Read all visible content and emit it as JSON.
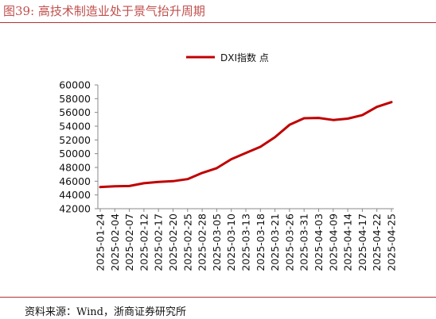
{
  "figure": {
    "title": "图39:   高技术制造业处于景气抬升周期",
    "source": "资料来源：Wind，浙商证券研究所"
  },
  "colors": {
    "series": "#c00000",
    "accent": "#c0504d",
    "axis": "#888888"
  },
  "chart_data": {
    "type": "line",
    "xlabel": "",
    "ylabel": "",
    "ylim": [
      42000,
      60000
    ],
    "yticks": [
      "42000",
      "44000",
      "46000",
      "48000",
      "50000",
      "52000",
      "54000",
      "56000",
      "58000",
      "60000"
    ],
    "grid": false,
    "legend": "top-center",
    "x": [
      "2025-01-24",
      "2025-02-04",
      "2025-02-07",
      "2025-02-12",
      "2025-02-17",
      "2025-02-20",
      "2025-02-25",
      "2025-02-28",
      "2025-03-05",
      "2025-03-10",
      "2025-03-13",
      "2025-03-18",
      "2025-03-21",
      "2025-03-26",
      "2025-03-31",
      "2025-04-03",
      "2025-04-09",
      "2025-04-14",
      "2025-04-17",
      "2025-04-22",
      "2025-04-25"
    ],
    "xtick_labels": [
      "2025-01-24",
      "2025-02-04",
      "2025-02-07",
      "2025-02-12",
      "2025-02-17",
      "2025-02-20",
      "2025-02-25",
      "2025-02-28",
      "2025-03-05",
      "2025-03-10",
      "2025-03-13",
      "2025-03-18",
      "2025-03-21",
      "2025-03-26",
      "2025-03-31",
      "2025-04-03",
      "2025-04-09",
      "2025-04-14",
      "2025-04-17",
      "2025-04-22",
      "2025-04-25"
    ],
    "series": [
      {
        "name": "DXI指数 点",
        "values": [
          45150,
          45250,
          45300,
          45700,
          45900,
          46000,
          46300,
          47200,
          47900,
          49200,
          50100,
          51000,
          52400,
          54200,
          55150,
          55200,
          54900,
          55100,
          55600,
          56800,
          57500
        ]
      }
    ]
  }
}
